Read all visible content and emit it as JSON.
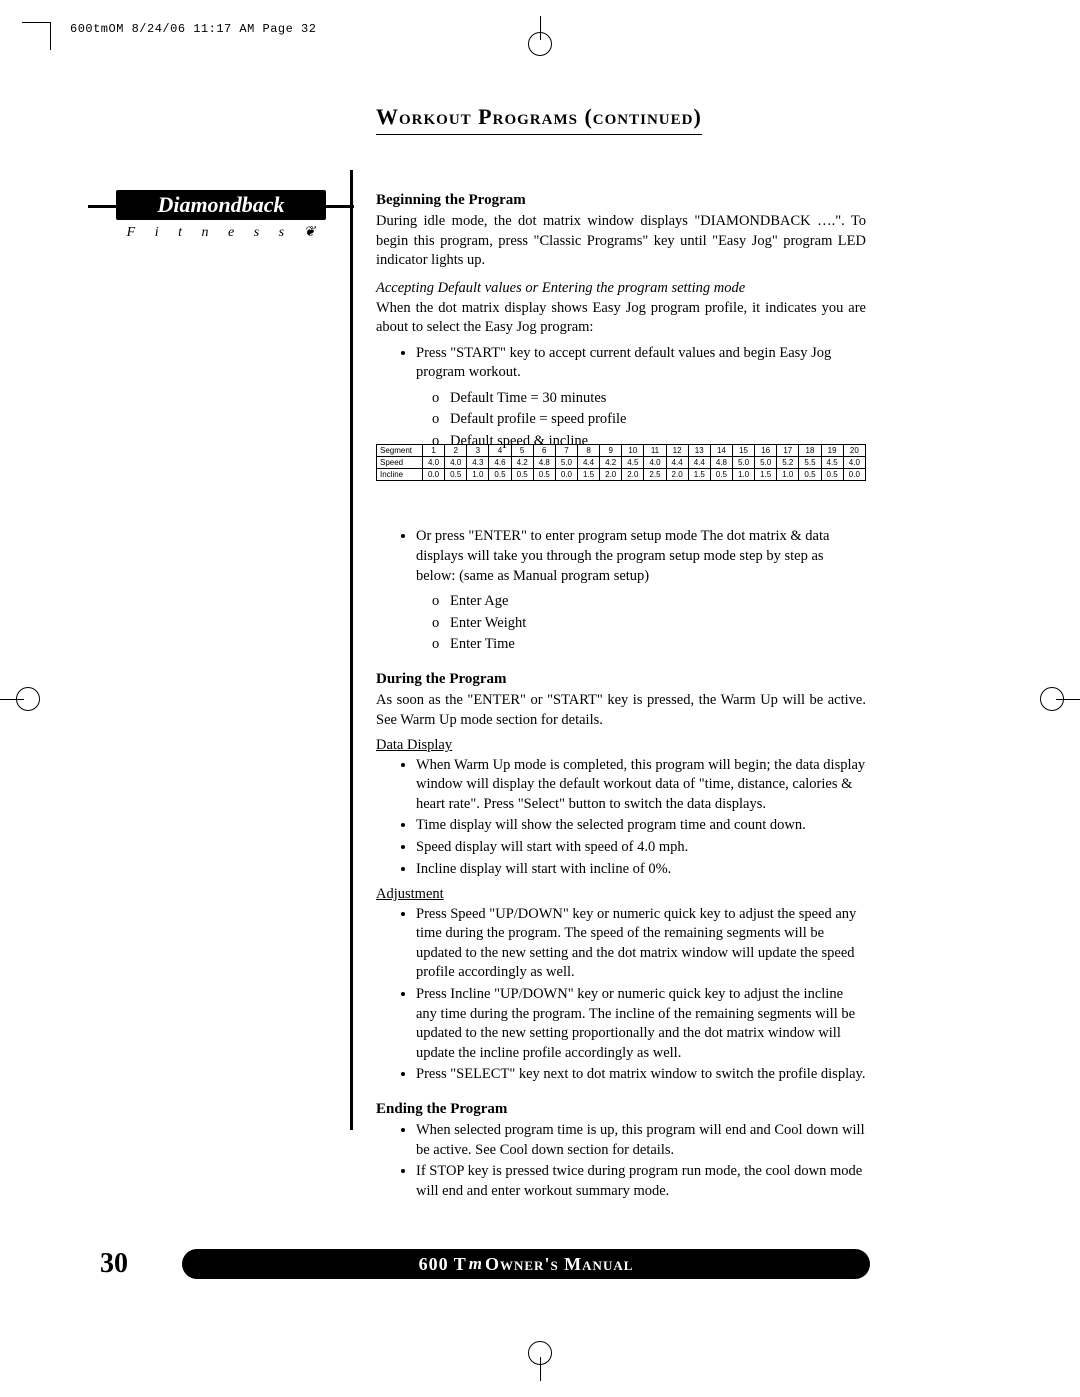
{
  "print_header": "600tmOM  8/24/06  11:17 AM  Page 32",
  "title": "Workout Programs (continued)",
  "logo": {
    "brand": "Diamondback",
    "sub": "F i t n e s s"
  },
  "sections": {
    "begin_h": "Beginning the Program",
    "begin_p": "During idle mode, the dot matrix window displays \"DIAMONDBACK ….\". To begin this program, press \"Classic Programs\" key until \"Easy Jog\" program LED indicator lights up.",
    "accept_sub": "Accepting Default values or Entering the program setting mode",
    "accept_p": "When the dot matrix display shows Easy Jog program profile, it indicates you are about to select the Easy Jog program:",
    "bullets1": [
      "Press \"START\" key to accept current default values and begin Easy Jog program workout."
    ],
    "defaults": [
      "Default Time = 30 minutes",
      "Default profile = speed profile",
      "Default speed & incline"
    ],
    "bullets2": [
      "Or press \"ENTER\" to enter program setup mode The dot matrix & data displays will take you through the program setup mode step by step as below: (same as Manual program setup)"
    ],
    "enters": [
      "Enter Age",
      "Enter Weight",
      "Enter Time"
    ],
    "during_h": "During the Program",
    "during_p": "As soon as the \"ENTER\" or \"START\" key is pressed, the Warm Up will be active. See Warm Up mode section for details.",
    "data_display_h": "Data Display",
    "dd_bullets": [
      "When Warm Up mode is completed, this program will begin; the data display window will display the default workout data of \"time, distance, calories & heart rate\". Press \"Select\" button to switch the data displays.",
      "Time display will show the selected program time and count down.",
      "Speed display will start with speed of 4.0 mph.",
      "Incline display will start with incline of 0%."
    ],
    "adjust_h": "Adjustment",
    "adj_bullets": [
      "Press Speed \"UP/DOWN\" key or numeric quick key to adjust the speed any time during the program. The speed of the remaining segments will be updated to the new setting and the dot matrix window will update the speed profile accordingly as well.",
      "Press Incline \"UP/DOWN\" key or numeric quick key to adjust the incline any time during the program. The incline of the remaining segments will be updated to the new setting proportionally and the dot matrix window will update the incline profile accordingly as well.",
      "Press \"SELECT\" key next to dot matrix window to switch the profile display."
    ],
    "end_h": "Ending the Program",
    "end_bullets": [
      "When selected program time is up, this program will end and Cool down will be active. See Cool down section for details.",
      "If STOP key is pressed twice during program run mode, the cool down mode will end and enter workout summary mode."
    ]
  },
  "table": {
    "row_headers": [
      "Segment",
      "Speed",
      "Incline"
    ],
    "segments": [
      1,
      2,
      3,
      4,
      5,
      6,
      7,
      8,
      9,
      10,
      11,
      12,
      13,
      14,
      15,
      16,
      17,
      18,
      19,
      20
    ],
    "speed": [
      "4.0",
      "4.0",
      "4.3",
      "4.6",
      "4.2",
      "4.8",
      "5.0",
      "4.4",
      "4.2",
      "4.5",
      "4.0",
      "4.4",
      "4.4",
      "4.8",
      "5.0",
      "5.0",
      "5.2",
      "5.5",
      "4.5",
      "4.0"
    ],
    "incline": [
      "0.0",
      "0.5",
      "1.0",
      "0.5",
      "0.5",
      "0.5",
      "0.0",
      "1.5",
      "2.0",
      "2.0",
      "2.5",
      "2.0",
      "1.5",
      "0.5",
      "1.0",
      "1.5",
      "1.0",
      "0.5",
      "0.5",
      "0.0"
    ]
  },
  "footer": {
    "page_num": "30",
    "pill_left": "600 T",
    "pill_mid": "m",
    "pill_right": " Owner's Manual"
  },
  "colors": {
    "text": "#000000",
    "bg": "#ffffff",
    "pill_bg": "#000000",
    "pill_fg": "#ffffff"
  }
}
